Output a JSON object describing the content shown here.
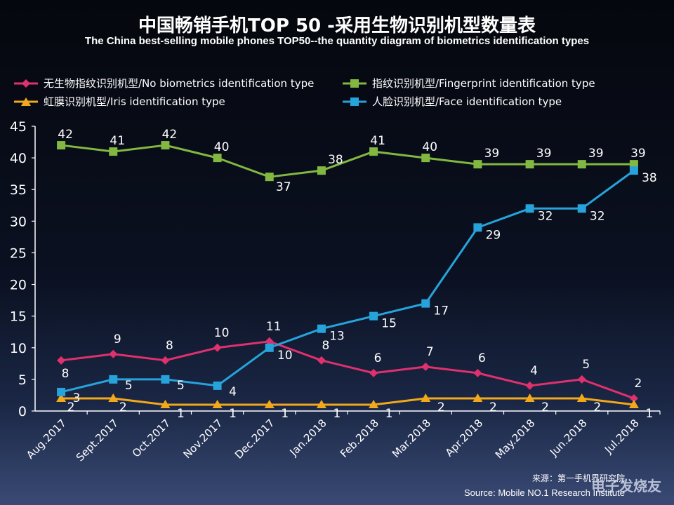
{
  "title": "中国畅销手机TOP 50 -采用生物识别机型数量表",
  "subtitle": "The China best-selling mobile phones TOP50--the quantity diagram of biometrics identification types",
  "source_cn": "来源：第一手机界研究院",
  "source_en": "Source: Mobile NO.1 Research Institute",
  "watermark": "电子发烧友",
  "chart_data": {
    "type": "line",
    "categories": [
      "Aug.2017",
      "Sept.2017",
      "Oct.2017",
      "Nov.2017",
      "Dec.2017",
      "Jan.2018",
      "Feb.2018",
      "Mar.2018",
      "Apr.2018",
      "May.2018",
      "Jun.2018",
      "Jul.2018"
    ],
    "ylim": [
      0,
      45
    ],
    "yticks": [
      0,
      5,
      10,
      15,
      20,
      25,
      30,
      35,
      40,
      45
    ],
    "legend_position": "top",
    "series": [
      {
        "name": "无生物指纹识别机型/No biometrics identification type",
        "color": "#e0306e",
        "marker": "diamond",
        "values": [
          8,
          9,
          8,
          10,
          11,
          8,
          6,
          7,
          6,
          4,
          5,
          2
        ]
      },
      {
        "name": "指纹识别机型/Fingerprint identification type",
        "color": "#82b841",
        "marker": "square",
        "values": [
          42,
          41,
          42,
          40,
          37,
          38,
          41,
          40,
          39,
          39,
          39,
          39
        ]
      },
      {
        "name": "虹膜识别机型/Iris identification type",
        "color": "#f2a81d",
        "marker": "triangle",
        "values": [
          2,
          2,
          1,
          1,
          1,
          1,
          1,
          2,
          2,
          2,
          2,
          1
        ]
      },
      {
        "name": "人脸识别机型/Face identification type",
        "color": "#27a3dc",
        "marker": "square",
        "values": [
          3,
          5,
          5,
          4,
          10,
          13,
          15,
          17,
          29,
          32,
          32,
          38
        ]
      }
    ]
  }
}
